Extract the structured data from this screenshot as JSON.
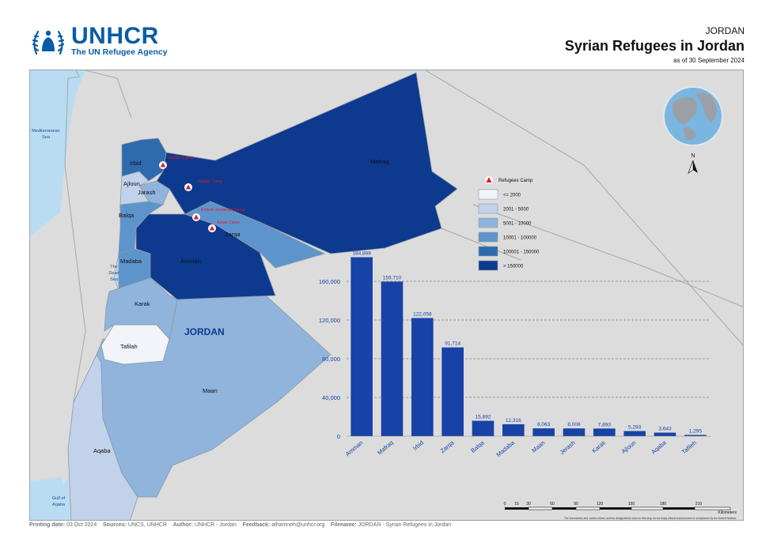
{
  "logo": {
    "name": "UNHCR",
    "tagline": "The UN Refugee Agency"
  },
  "title": {
    "country": "JORDAN",
    "main": "Syrian Refugees in Jordan",
    "date": "as of 30 September 2024"
  },
  "map": {
    "country_label": "JORDAN",
    "seas": {
      "mediterranean": [
        "Mediterranean",
        "Sea"
      ],
      "dead_sea": [
        "The",
        "Dead",
        "Sea"
      ],
      "gulf": [
        "Gulf of",
        "Aqaba"
      ]
    },
    "governorates": [
      {
        "name": "Irbid",
        "value": 122058
      },
      {
        "name": "Ajloun",
        "value": 5293
      },
      {
        "name": "Jarash",
        "value": 8008
      },
      {
        "name": "Balqa",
        "value": 15892
      },
      {
        "name": "Madaba",
        "value": 12316
      },
      {
        "name": "Amman",
        "value": 184888
      },
      {
        "name": "Zarqa",
        "value": 91714
      },
      {
        "name": "Mafraq",
        "value": 159710
      },
      {
        "name": "Karak",
        "value": 7893
      },
      {
        "name": "Tafilah",
        "value": 1295
      },
      {
        "name": "Maan",
        "value": 8063
      },
      {
        "name": "Aqaba",
        "value": 3643
      }
    ],
    "camps": [
      {
        "name": "Garden Camp"
      },
      {
        "name": "Zaatari Camp"
      },
      {
        "name": "Emirati Jordanian Camp"
      },
      {
        "name": "Azraq Camp"
      }
    ],
    "colors": {
      "c1": "#f2f4fa",
      "c2": "#c2d2ea",
      "c3": "#90b4dc",
      "c4": "#5e94cc",
      "c5": "#2e6aae",
      "c6": "#0d3a8e",
      "outside": "#dcdcdc",
      "sea": "#b9dcf2"
    }
  },
  "legend": {
    "camp_label": "Refugees Camp",
    "classes": [
      {
        "label": "<= 2000",
        "color": "#f2f4fa"
      },
      {
        "label": "2001 - 5000",
        "color": "#c2d2ea"
      },
      {
        "label": "5001 - 10000",
        "color": "#90b4dc"
      },
      {
        "label": "10001 - 100000",
        "color": "#5e94cc"
      },
      {
        "label": "100001 - 150000",
        "color": "#2e6aae"
      },
      {
        "label": "> 150000",
        "color": "#0d3a8e"
      }
    ]
  },
  "chart_data": {
    "type": "bar",
    "categories": [
      "Amman",
      "Mafraq",
      "Irbid",
      "Zarqa",
      "Balqa",
      "Madaba",
      "Maan",
      "Jerash",
      "Karak",
      "Ajloun",
      "Aqaba",
      "Tafileh"
    ],
    "values": [
      184888,
      159710,
      122058,
      91714,
      15892,
      12316,
      8063,
      8008,
      7893,
      5293,
      3643,
      1295
    ],
    "value_labels": [
      "184,888",
      "159,710",
      "122,058",
      "91,714",
      "15,892",
      "12,316",
      "8,063",
      "8,008",
      "7,893",
      "5,293",
      "3,643",
      "1,295"
    ],
    "yticks": [
      0,
      40000,
      80000,
      120000,
      160000
    ],
    "ytick_labels": [
      "0",
      "40,000",
      "80,000",
      "120,000",
      "160,000"
    ],
    "ylim": [
      0,
      200000
    ],
    "grid": true,
    "bar_color": "#1742a8",
    "title": "",
    "xlabel": "",
    "ylabel": ""
  },
  "north": {
    "label": "N"
  },
  "scale": {
    "ticks": [
      "0",
      "15",
      "30",
      "60",
      "90",
      "120",
      "150",
      "180",
      "210"
    ],
    "unit": "Kilometers",
    "note": "The boundaries and names shown and the designations used on this map do not imply official endorsement or acceptance by the United Nations."
  },
  "footer": {
    "printing_label": "Printing date:",
    "printing_value": "03 Oct 2024",
    "sources_label": "Sources:",
    "sources_value": "UNCS, UNHCR",
    "author_label": "Author:",
    "author_value": "UNHCR - Jordan",
    "feedback_label": "Feedback:",
    "feedback_value": "alhamneh@unhcr.org",
    "filename_label": "Filename:",
    "filename_value": "JORDAN - Syrian Refugees in Jordan"
  }
}
